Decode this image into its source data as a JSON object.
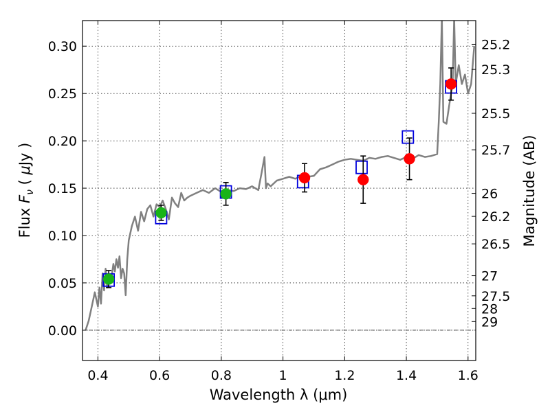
{
  "chart_data": {
    "type": "scatter",
    "xlabel": "Wavelength  λ (μm)",
    "ylabel": "Flux  F_ν  ( μJy )",
    "ylabel_parts": {
      "a": "Flux ",
      "sym": "F",
      "sub": "ν",
      "b": "  ( ",
      "mu": "μ",
      "c": "Jy )"
    },
    "y2label": "Magnitude (AB)",
    "xlim": [
      0.35,
      1.625
    ],
    "ylim": [
      -0.032,
      0.327
    ],
    "grid": true,
    "x_ticks": [
      {
        "v": 0.4,
        "label": "0.4"
      },
      {
        "v": 0.6,
        "label": "0.6"
      },
      {
        "v": 0.8,
        "label": "0.8"
      },
      {
        "v": 1.0,
        "label": "1"
      },
      {
        "v": 1.2,
        "label": "1.2"
      },
      {
        "v": 1.4,
        "label": "1.4"
      },
      {
        "v": 1.6,
        "label": "1.6"
      }
    ],
    "y_ticks": [
      {
        "v": 0.0,
        "label": "0.00"
      },
      {
        "v": 0.05,
        "label": "0.05"
      },
      {
        "v": 0.1,
        "label": "0.10"
      },
      {
        "v": 0.15,
        "label": "0.15"
      },
      {
        "v": 0.2,
        "label": "0.20"
      },
      {
        "v": 0.25,
        "label": "0.25"
      },
      {
        "v": 0.3,
        "label": "0.30"
      }
    ],
    "y2_ticks": [
      {
        "mag": 25.2,
        "label": "25.2"
      },
      {
        "mag": 25.3,
        "label": "25.3"
      },
      {
        "mag": 25.5,
        "label": "25.5"
      },
      {
        "mag": 25.7,
        "label": "25.7"
      },
      {
        "mag": 26,
        "label": "26"
      },
      {
        "mag": 26.2,
        "label": "26.2"
      },
      {
        "mag": 26.5,
        "label": "26.5"
      },
      {
        "mag": 27,
        "label": "27"
      },
      {
        "mag": 27.5,
        "label": "27.5"
      },
      {
        "mag": 28,
        "label": "28"
      },
      {
        "mag": 29,
        "label": "29"
      }
    ],
    "model_spectrum": {
      "color": "#808080",
      "x": [
        0.36,
        0.37,
        0.38,
        0.39,
        0.4,
        0.405,
        0.41,
        0.415,
        0.42,
        0.425,
        0.43,
        0.435,
        0.44,
        0.445,
        0.45,
        0.455,
        0.46,
        0.465,
        0.47,
        0.475,
        0.48,
        0.485,
        0.49,
        0.495,
        0.5,
        0.51,
        0.52,
        0.53,
        0.54,
        0.55,
        0.56,
        0.57,
        0.58,
        0.59,
        0.6,
        0.61,
        0.62,
        0.63,
        0.64,
        0.65,
        0.66,
        0.67,
        0.68,
        0.69,
        0.7,
        0.72,
        0.74,
        0.76,
        0.78,
        0.8,
        0.82,
        0.84,
        0.86,
        0.88,
        0.9,
        0.92,
        0.93,
        0.94,
        0.945,
        0.95,
        0.96,
        0.98,
        1.0,
        1.02,
        1.04,
        1.06,
        1.08,
        1.1,
        1.12,
        1.14,
        1.16,
        1.18,
        1.2,
        1.22,
        1.24,
        1.26,
        1.28,
        1.3,
        1.32,
        1.34,
        1.36,
        1.38,
        1.4,
        1.42,
        1.44,
        1.46,
        1.48,
        1.5,
        1.505,
        1.51,
        1.515,
        1.52,
        1.53,
        1.54,
        1.55,
        1.555,
        1.56,
        1.57,
        1.58,
        1.59,
        1.6,
        1.61,
        1.62
      ],
      "y": [
        0.0,
        0.01,
        0.025,
        0.04,
        0.025,
        0.045,
        0.028,
        0.06,
        0.042,
        0.065,
        0.045,
        0.055,
        0.05,
        0.058,
        0.07,
        0.062,
        0.075,
        0.066,
        0.078,
        0.055,
        0.065,
        0.06,
        0.037,
        0.075,
        0.095,
        0.11,
        0.12,
        0.105,
        0.125,
        0.115,
        0.128,
        0.132,
        0.12,
        0.133,
        0.13,
        0.137,
        0.128,
        0.117,
        0.14,
        0.134,
        0.13,
        0.145,
        0.137,
        0.14,
        0.142,
        0.145,
        0.148,
        0.145,
        0.15,
        0.146,
        0.148,
        0.147,
        0.15,
        0.149,
        0.152,
        0.148,
        0.165,
        0.183,
        0.15,
        0.155,
        0.152,
        0.158,
        0.16,
        0.162,
        0.16,
        0.163,
        0.162,
        0.163,
        0.17,
        0.172,
        0.175,
        0.178,
        0.18,
        0.181,
        0.18,
        0.179,
        0.182,
        0.181,
        0.183,
        0.184,
        0.182,
        0.18,
        0.183,
        0.181,
        0.185,
        0.183,
        0.184,
        0.186,
        0.22,
        0.26,
        0.33,
        0.22,
        0.218,
        0.24,
        0.26,
        0.33,
        0.26,
        0.28,
        0.26,
        0.27,
        0.25,
        0.26,
        0.3
      ]
    },
    "series": [
      {
        "name": "",
        "marker": "circle",
        "color": "#18b418",
        "x": [
          0.435,
          0.605,
          0.815
        ],
        "y": [
          0.054,
          0.124,
          0.144
        ],
        "yerr": [
          0.009,
          0.008,
          0.012
        ]
      },
      {
        "name": "",
        "marker": "circle",
        "color": "#ff0000",
        "x": [
          1.07,
          1.26,
          1.41,
          1.545
        ],
        "y": [
          0.161,
          0.159,
          0.181,
          0.26
        ],
        "yerr": [
          0.015,
          0.025,
          0.022,
          0.017
        ]
      },
      {
        "name": "",
        "marker": "square-open",
        "color": "#0000dd",
        "x": [
          0.435,
          0.605,
          0.815,
          1.065,
          1.255,
          1.405,
          1.545
        ],
        "y": [
          0.053,
          0.119,
          0.146,
          0.157,
          0.172,
          0.204,
          0.257
        ]
      }
    ]
  }
}
